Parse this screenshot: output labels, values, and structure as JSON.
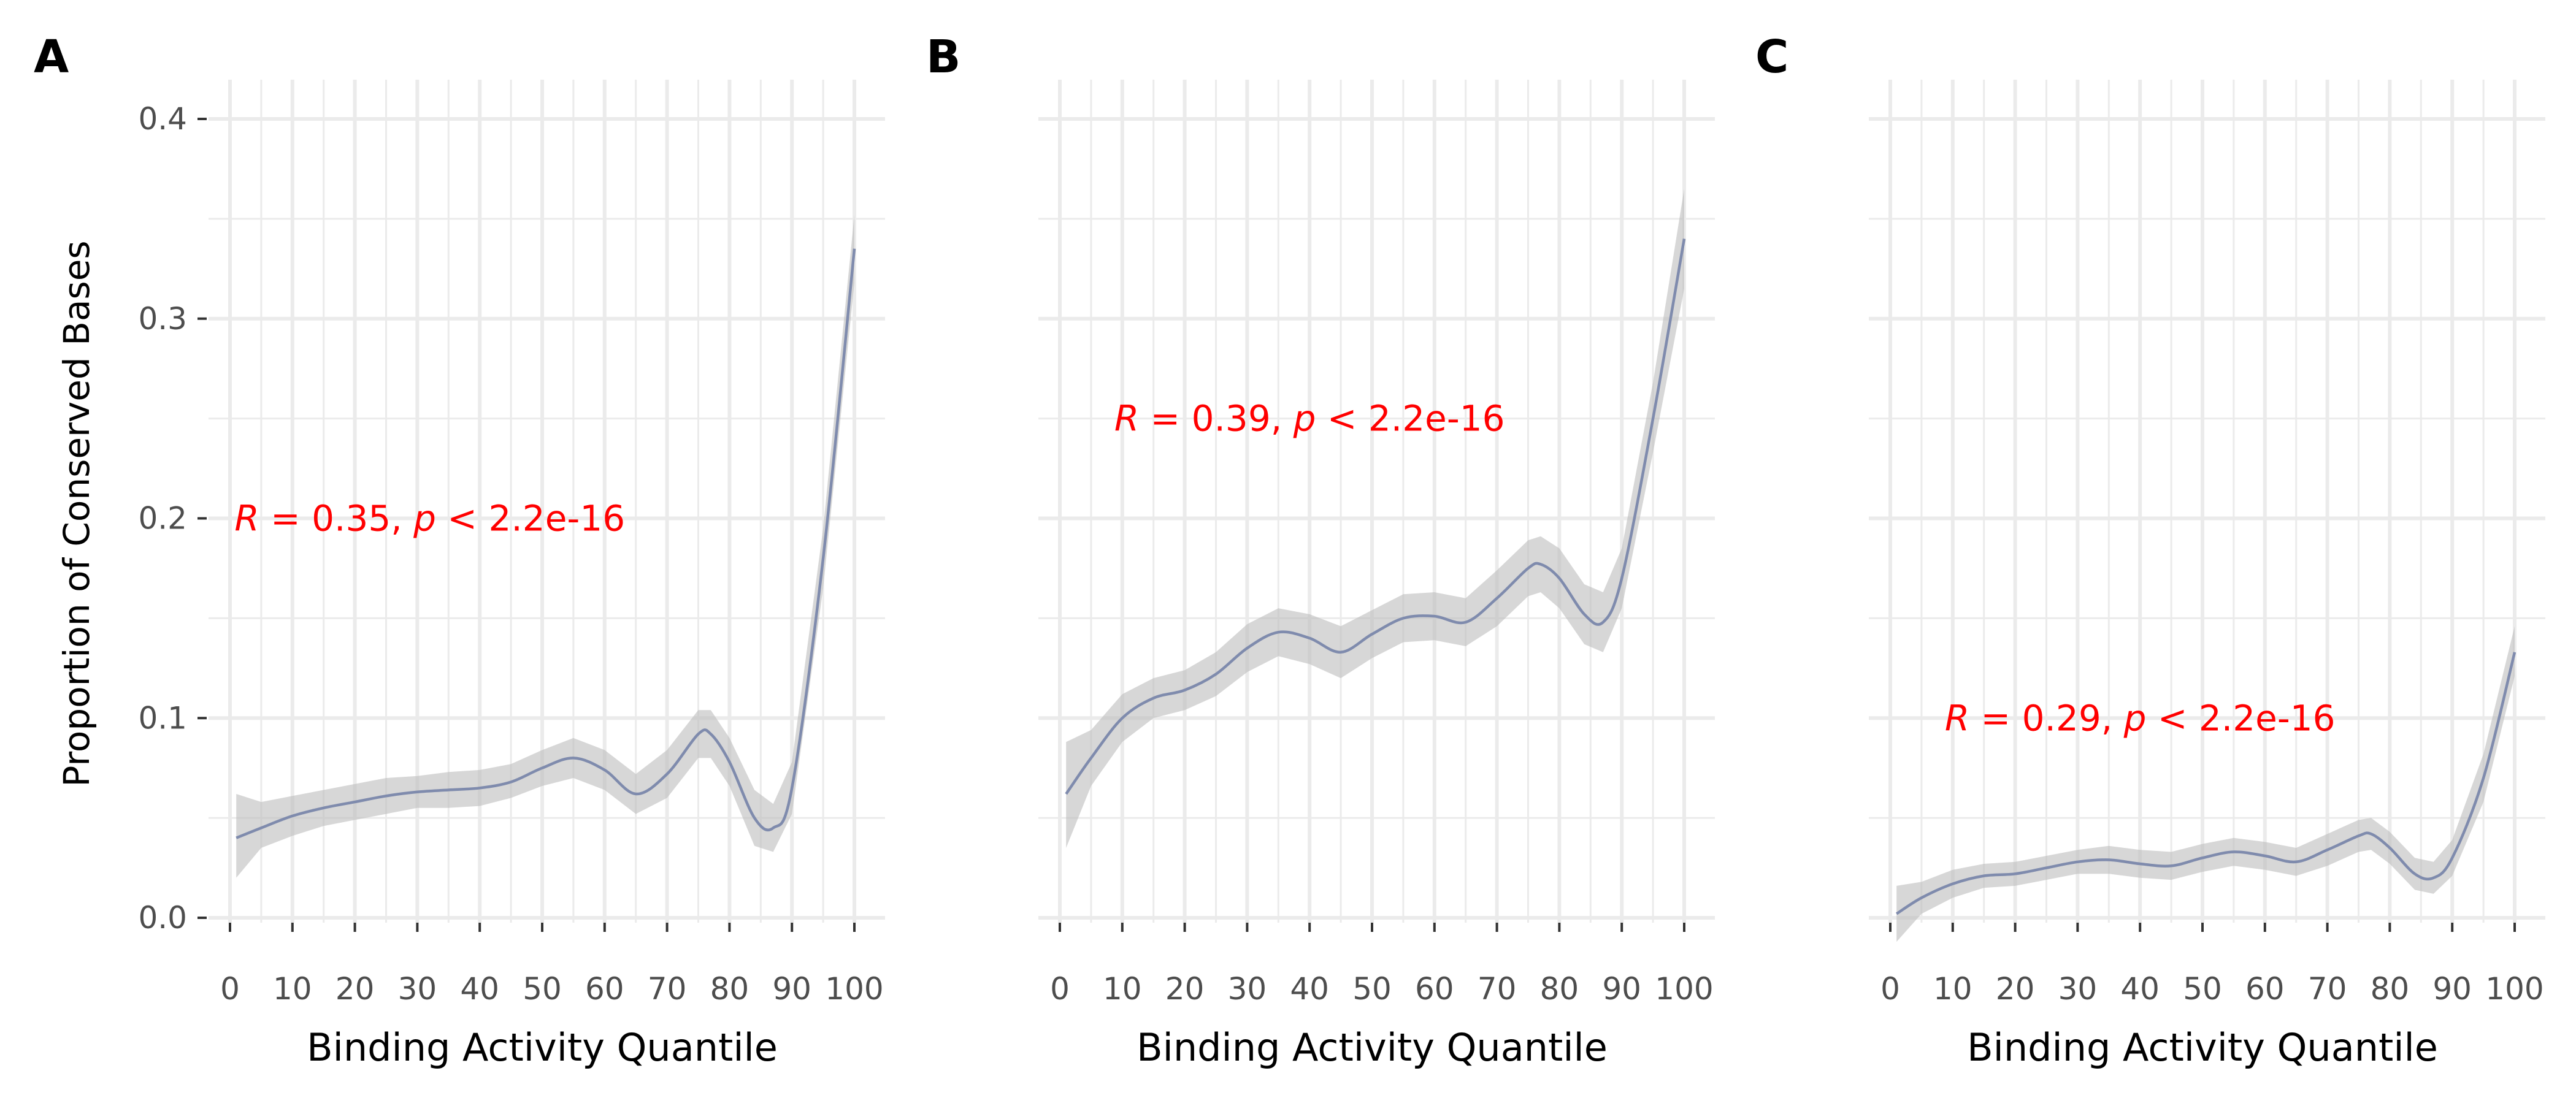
{
  "shared_ylabel": "Proportion of Conserved Bases",
  "colors": {
    "line": "#7f8bad",
    "ribbon": "#bdbdbd",
    "grid": "#ebebeb",
    "annotation": "#ff0000",
    "tick_text": "#4d4d4d",
    "axis_title": "#000000"
  },
  "chart_data": [
    {
      "type": "line",
      "panel_label": "A",
      "xlabel": "Binding Activity Quantile",
      "ylabel": "Proportion of Conserved Bases",
      "xlim": [
        0,
        100
      ],
      "ylim": [
        0.0,
        0.4
      ],
      "xticks": [
        0,
        10,
        20,
        30,
        40,
        50,
        60,
        70,
        80,
        90,
        100
      ],
      "yticks": [
        0.0,
        0.1,
        0.2,
        0.3,
        0.4
      ],
      "ytick_labels": [
        "0.0",
        "0.1",
        "0.2",
        "0.3",
        "0.4"
      ],
      "grid": true,
      "annotation": {
        "r_value": "0.35",
        "p_value": "2.2e-16",
        "x": 32,
        "y": 0.2
      },
      "x": [
        1,
        5,
        10,
        15,
        20,
        25,
        30,
        35,
        40,
        45,
        50,
        55,
        60,
        65,
        70,
        75,
        77,
        80,
        84,
        87,
        90,
        95,
        100
      ],
      "y": [
        0.04,
        0.045,
        0.051,
        0.055,
        0.058,
        0.061,
        0.063,
        0.064,
        0.065,
        0.068,
        0.075,
        0.08,
        0.074,
        0.062,
        0.072,
        0.092,
        0.092,
        0.078,
        0.05,
        0.045,
        0.065,
        0.18,
        0.335
      ],
      "y_lower": [
        0.02,
        0.035,
        0.041,
        0.046,
        0.049,
        0.052,
        0.055,
        0.055,
        0.056,
        0.06,
        0.066,
        0.07,
        0.064,
        0.052,
        0.06,
        0.08,
        0.08,
        0.066,
        0.036,
        0.033,
        0.052,
        0.165,
        0.318
      ],
      "y_upper": [
        0.062,
        0.058,
        0.061,
        0.064,
        0.067,
        0.07,
        0.071,
        0.073,
        0.074,
        0.077,
        0.084,
        0.09,
        0.084,
        0.072,
        0.084,
        0.104,
        0.104,
        0.09,
        0.064,
        0.057,
        0.078,
        0.195,
        0.352
      ]
    },
    {
      "type": "line",
      "panel_label": "B",
      "xlabel": "Binding Activity Quantile",
      "xlim": [
        0,
        100
      ],
      "ylim": [
        0.0,
        0.4
      ],
      "xticks": [
        0,
        10,
        20,
        30,
        40,
        50,
        60,
        70,
        80,
        90,
        100
      ],
      "grid": true,
      "annotation": {
        "r_value": "0.39",
        "p_value": "2.2e-16",
        "x": 40,
        "y": 0.25
      },
      "x": [
        1,
        5,
        10,
        15,
        20,
        25,
        30,
        35,
        40,
        45,
        50,
        55,
        60,
        65,
        70,
        75,
        77,
        80,
        84,
        87,
        90,
        95,
        100
      ],
      "y": [
        0.062,
        0.08,
        0.1,
        0.11,
        0.114,
        0.122,
        0.135,
        0.143,
        0.14,
        0.133,
        0.142,
        0.15,
        0.151,
        0.148,
        0.16,
        0.175,
        0.177,
        0.17,
        0.152,
        0.148,
        0.17,
        0.25,
        0.34
      ],
      "y_lower": [
        0.035,
        0.066,
        0.088,
        0.1,
        0.104,
        0.111,
        0.123,
        0.131,
        0.127,
        0.12,
        0.13,
        0.138,
        0.139,
        0.136,
        0.146,
        0.161,
        0.163,
        0.155,
        0.137,
        0.133,
        0.155,
        0.233,
        0.315
      ],
      "y_upper": [
        0.088,
        0.094,
        0.112,
        0.12,
        0.124,
        0.133,
        0.147,
        0.155,
        0.152,
        0.146,
        0.154,
        0.162,
        0.163,
        0.16,
        0.174,
        0.189,
        0.191,
        0.185,
        0.167,
        0.163,
        0.185,
        0.268,
        0.365
      ]
    },
    {
      "type": "line",
      "panel_label": "C",
      "xlabel": "Binding Activity Quantile",
      "xlim": [
        0,
        100
      ],
      "ylim": [
        0.0,
        0.4
      ],
      "xticks": [
        0,
        10,
        20,
        30,
        40,
        50,
        60,
        70,
        80,
        90,
        100
      ],
      "grid": true,
      "annotation": {
        "r_value": "0.29",
        "p_value": "2.2e-16",
        "x": 40,
        "y": 0.1
      },
      "x": [
        1,
        5,
        10,
        15,
        20,
        25,
        30,
        35,
        40,
        45,
        50,
        55,
        60,
        65,
        70,
        75,
        77,
        80,
        84,
        87,
        90,
        95,
        100
      ],
      "y": [
        0.002,
        0.01,
        0.017,
        0.021,
        0.022,
        0.025,
        0.028,
        0.029,
        0.027,
        0.026,
        0.03,
        0.033,
        0.031,
        0.028,
        0.034,
        0.041,
        0.042,
        0.035,
        0.022,
        0.02,
        0.03,
        0.07,
        0.133
      ],
      "y_lower": [
        -0.012,
        0.002,
        0.01,
        0.015,
        0.016,
        0.019,
        0.022,
        0.022,
        0.02,
        0.019,
        0.023,
        0.026,
        0.024,
        0.021,
        0.026,
        0.033,
        0.034,
        0.027,
        0.014,
        0.012,
        0.021,
        0.058,
        0.121
      ],
      "y_upper": [
        0.016,
        0.018,
        0.024,
        0.027,
        0.028,
        0.031,
        0.034,
        0.036,
        0.034,
        0.033,
        0.037,
        0.04,
        0.038,
        0.035,
        0.042,
        0.049,
        0.05,
        0.043,
        0.03,
        0.028,
        0.039,
        0.082,
        0.146
      ]
    }
  ]
}
